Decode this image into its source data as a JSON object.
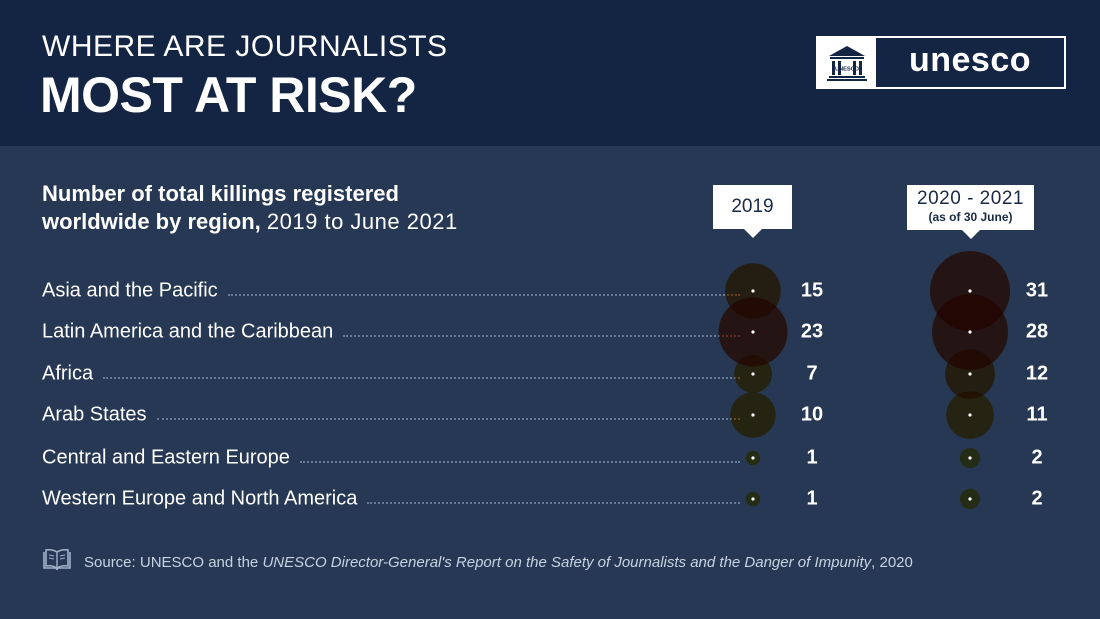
{
  "header": {
    "title_small": "WHERE ARE JOURNALISTS",
    "title_big": "MOST AT RISK?",
    "logo_text": "unesco",
    "logo_emblem_text": "UNESCO"
  },
  "subtitle": {
    "bold_line1": "Number of total killings registered",
    "bold_line2": "worldwide by region,",
    "light_line2": "2019 to June 2021"
  },
  "callouts": {
    "col1_label": "2019",
    "col2_label": "2020 - 2021",
    "col2_note": "(as of 30 June)"
  },
  "chart_data": {
    "type": "bubble",
    "categories": [
      "Asia and the Pacific",
      "Latin America and the Caribbean",
      "Africa",
      "Arab States",
      "Central and Eastern Europe",
      "Western Europe and North America"
    ],
    "series": [
      {
        "name": "2019",
        "values": [
          15,
          23,
          7,
          10,
          1,
          1
        ]
      },
      {
        "name": "2020 - 2021",
        "values": [
          31,
          28,
          12,
          11,
          2,
          2
        ]
      }
    ]
  },
  "colors": {
    "background": "#263853",
    "header": "#142544",
    "bubble_yellow": "#f7c331",
    "bubble_orange": "#f59422",
    "bubble_deep_orange": "#f07a22",
    "bubble_red": "#ed4b2a"
  },
  "source": {
    "prefix": "Source: UNESCO and the",
    "italic": "UNESCO Director-General's Report on the Safety of Journalists and the Danger of Impunity",
    "suffix": ", 2020",
    "icon": "open-book-icon"
  }
}
